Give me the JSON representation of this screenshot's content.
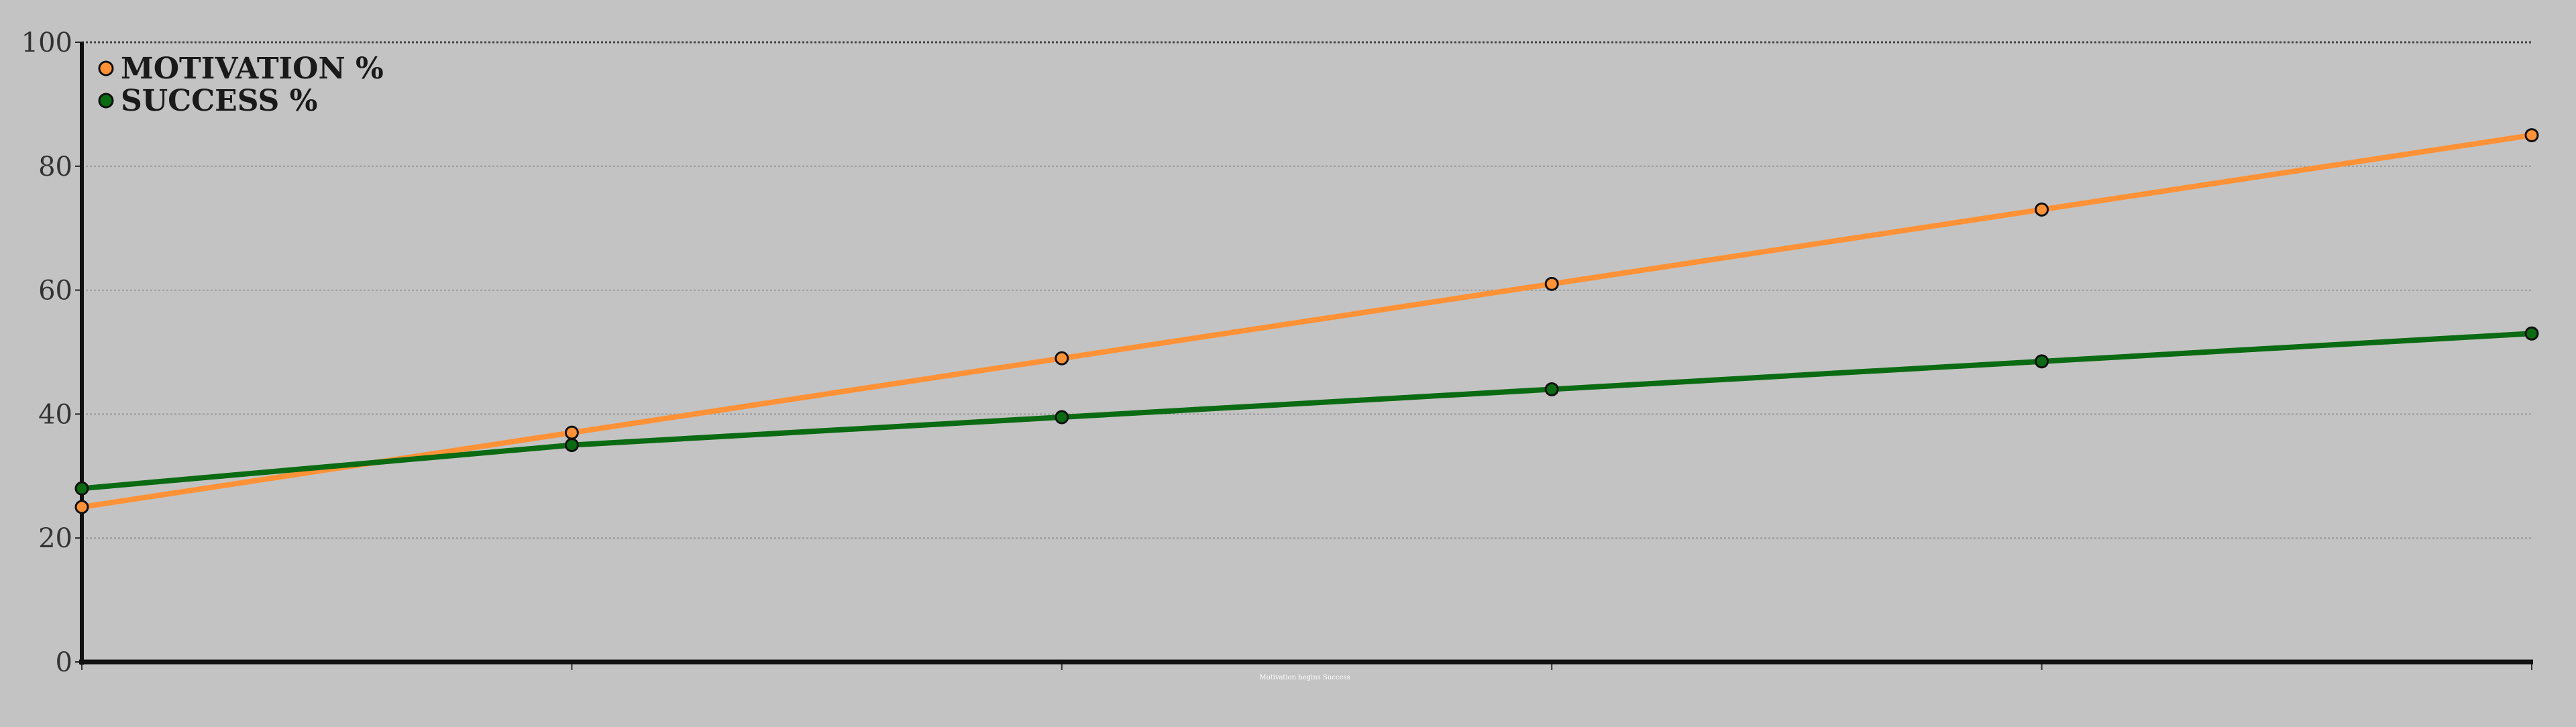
{
  "chart_data": {
    "type": "line",
    "title": "",
    "xlabel": "",
    "ylabel": "",
    "x": [
      0,
      1,
      2,
      3,
      4,
      5
    ],
    "xlim": [
      0,
      5
    ],
    "ylim": [
      0,
      100
    ],
    "y_ticks": [
      0,
      20,
      40,
      60,
      80,
      100
    ],
    "grid": true,
    "legend_position": "top-left",
    "footer_text": "Motivation begins Success",
    "series": [
      {
        "name": "MOTIVATION %",
        "color": "#ff9237",
        "values": [
          25,
          37,
          49,
          61,
          73,
          85
        ]
      },
      {
        "name": "SUCCESS %",
        "color": "#0b6b13",
        "values": [
          28,
          35,
          39.5,
          44,
          48.5,
          53
        ]
      }
    ]
  }
}
